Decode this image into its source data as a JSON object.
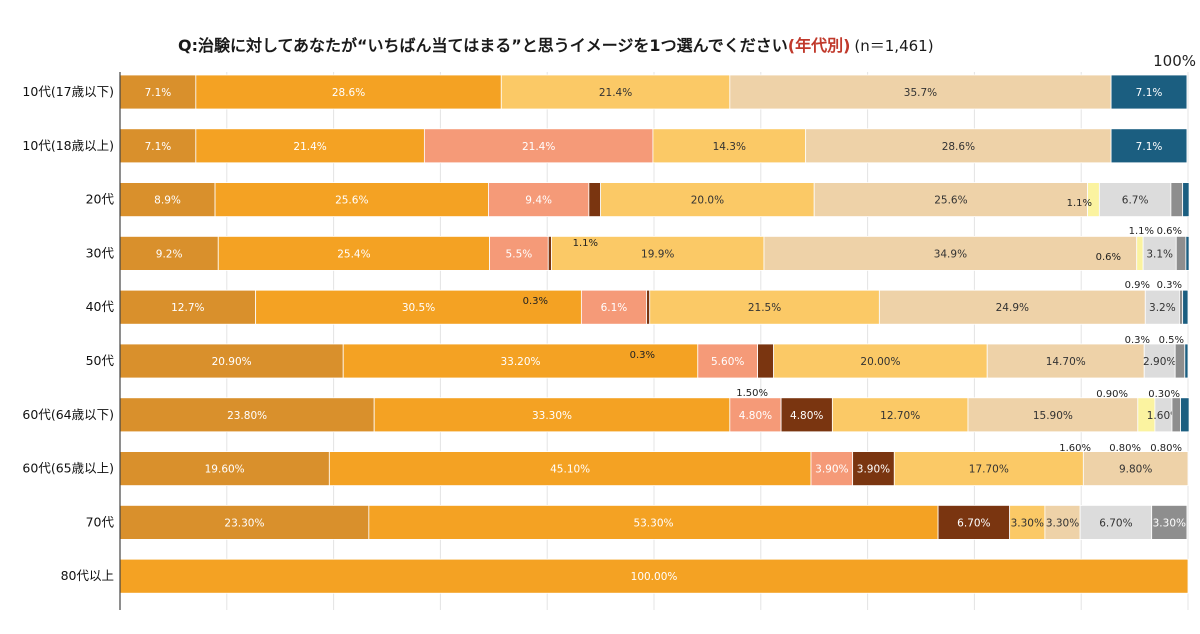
{
  "chart_data": {
    "type": "bar",
    "orientation": "horizontal-stacked-100",
    "title": "Q:治験に対してあなたが“いちばん当てはまる”と思うイメージを1つ選んでください",
    "title_highlight": "(年代別)",
    "title_n": "(n＝1,461)",
    "xlim": [
      0,
      100
    ],
    "x_max_label": "100%",
    "categories": [
      "10代(17歳以下)",
      "10代(18歳以上)",
      "20代",
      "30代",
      "40代",
      "50代",
      "60代(64歳以下)",
      "60代(65歳以上)",
      "70代",
      "80代以上"
    ],
    "series_colors": [
      "#d9902c",
      "#f4a223",
      "#f59a78",
      "#7a3510",
      "#fbc966",
      "#eed2a8",
      "#fbf3a0",
      "#dcdcdc",
      "#8e8e8e",
      "#1b5e80"
    ],
    "series_text_colors": [
      "#ffffff",
      "#ffffff",
      "#ffffff",
      "#ffffff",
      "#333333",
      "#333333",
      "#333333",
      "#333333",
      "#ffffff",
      "#ffffff"
    ],
    "series": [
      {
        "name": "S1",
        "values": [
          7.1,
          7.1,
          8.9,
          9.2,
          12.7,
          20.9,
          23.8,
          19.6,
          23.3,
          0
        ],
        "labels": [
          "7.1%",
          "7.1%",
          "8.9%",
          "9.2%",
          "12.7%",
          "20.90%",
          "23.80%",
          "19.60%",
          "23.30%",
          ""
        ]
      },
      {
        "name": "S2",
        "values": [
          28.6,
          21.4,
          25.6,
          25.4,
          30.5,
          33.2,
          33.3,
          45.1,
          53.3,
          100
        ],
        "labels": [
          "28.6%",
          "21.4%",
          "25.6%",
          "25.4%",
          "30.5%",
          "33.20%",
          "33.30%",
          "45.10%",
          "53.30%",
          "100.00%"
        ]
      },
      {
        "name": "S3",
        "values": [
          0,
          21.4,
          9.4,
          5.5,
          6.1,
          5.6,
          4.8,
          3.9,
          0,
          0
        ],
        "labels": [
          "",
          "21.4%",
          "9.4%",
          "5.5%",
          "6.1%",
          "5.60%",
          "4.80%",
          "3.90%",
          "",
          ""
        ]
      },
      {
        "name": "S4",
        "values": [
          0,
          0,
          1.1,
          0.3,
          0.3,
          1.5,
          4.8,
          3.9,
          6.7,
          0
        ],
        "labels": [
          "",
          "",
          "",
          "",
          "",
          "",
          "4.80%",
          "3.90%",
          "6.70%",
          ""
        ]
      },
      {
        "name": "S5",
        "values": [
          21.4,
          14.3,
          20.0,
          19.9,
          21.5,
          20.0,
          12.7,
          17.7,
          3.3,
          0
        ],
        "labels": [
          "21.4%",
          "14.3%",
          "20.0%",
          "19.9%",
          "21.5%",
          "20.00%",
          "12.70%",
          "17.70%",
          "3.30%",
          ""
        ]
      },
      {
        "name": "S6",
        "values": [
          35.7,
          28.6,
          25.6,
          34.9,
          24.9,
          14.7,
          15.9,
          9.8,
          3.3,
          0
        ],
        "labels": [
          "35.7%",
          "28.6%",
          "25.6%",
          "34.9%",
          "24.9%",
          "14.70%",
          "15.90%",
          "9.80%",
          "3.30%",
          ""
        ]
      },
      {
        "name": "S7",
        "values": [
          0,
          0,
          1.1,
          0.6,
          0,
          0,
          1.6,
          0,
          0,
          0
        ],
        "labels": [
          "",
          "",
          "",
          "",
          "",
          "",
          "",
          "",
          "",
          ""
        ]
      },
      {
        "name": "S8",
        "values": [
          0,
          0,
          6.7,
          3.1,
          3.2,
          2.9,
          1.6,
          0,
          6.7,
          0
        ],
        "labels": [
          "",
          "",
          "6.7%",
          "3.1%",
          "3.2%",
          "2.90%",
          "1.60%",
          "",
          "6.70%",
          ""
        ]
      },
      {
        "name": "S9",
        "values": [
          0,
          0,
          1.1,
          0.9,
          0.3,
          0.9,
          0.8,
          0,
          3.3,
          0
        ],
        "labels": [
          "",
          "",
          "",
          "",
          "",
          "",
          "",
          "",
          "3.30%",
          ""
        ]
      },
      {
        "name": "S10",
        "values": [
          7.1,
          7.1,
          0.6,
          0.3,
          0.5,
          0.3,
          0.8,
          0,
          0,
          0
        ],
        "labels": [
          "7.1%",
          "7.1%",
          "",
          "",
          "",
          "",
          "",
          "",
          "",
          ""
        ]
      }
    ],
    "small_value_annotations": [
      {
        "row": 2,
        "text": "1.1%"
      },
      {
        "row": 2,
        "text": "1.1%"
      },
      {
        "row": 2,
        "text": "1.1%"
      },
      {
        "row": 2,
        "text": "0.6%"
      },
      {
        "row": 3,
        "text": "0.3%"
      },
      {
        "row": 3,
        "text": "0.6%"
      },
      {
        "row": 3,
        "text": "0.9%"
      },
      {
        "row": 3,
        "text": "0.3%"
      },
      {
        "row": 4,
        "text": "0.3%"
      },
      {
        "row": 4,
        "text": "0.3%"
      },
      {
        "row": 4,
        "text": "0.5%"
      },
      {
        "row": 5,
        "text": "1.50%"
      },
      {
        "row": 5,
        "text": "0.90%"
      },
      {
        "row": 5,
        "text": "0.30%"
      },
      {
        "row": 6,
        "text": "1.60%"
      },
      {
        "row": 6,
        "text": "0.80%"
      },
      {
        "row": 6,
        "text": "0.80%"
      }
    ]
  }
}
